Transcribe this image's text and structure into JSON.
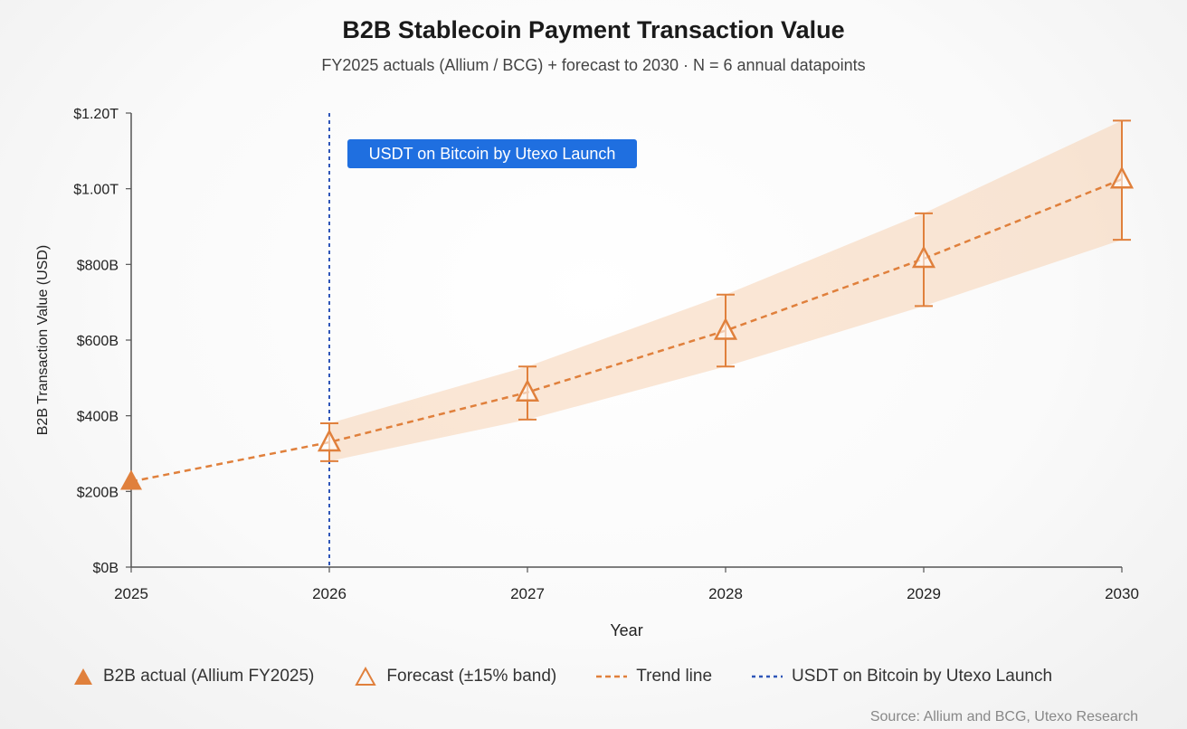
{
  "header": {
    "title": "B2B Stablecoin Payment Transaction Value",
    "subtitle": "FY2025 actuals (Allium / BCG) + forecast to 2030 · N = 6 annual datapoints"
  },
  "chart_data": {
    "type": "line",
    "xlabel": "Year",
    "ylabel": "B2B Transaction Value (USD)",
    "x": [
      "2025",
      "2026",
      "2027",
      "2028",
      "2029",
      "2030"
    ],
    "ylim": [
      0,
      1200
    ],
    "y_ticks": [
      0,
      200,
      400,
      600,
      800,
      1000,
      1200
    ],
    "y_tick_labels": [
      "$0B",
      "$200B",
      "$400B",
      "$600B",
      "$800B",
      "$1.00T",
      "$1.20T"
    ],
    "series": [
      {
        "name": "B2B actual (Allium FY2025)",
        "x": [
          "2025"
        ],
        "values": [
          226
        ]
      },
      {
        "name": "Forecast (±15% band)",
        "x": [
          "2026",
          "2027",
          "2028",
          "2029",
          "2030"
        ],
        "values": [
          330,
          462,
          625,
          815,
          1025
        ],
        "error_low": [
          280,
          390,
          530,
          690,
          865
        ],
        "error_high": [
          380,
          530,
          720,
          935,
          1180
        ]
      },
      {
        "name": "Trend line",
        "x": [
          "2025",
          "2026",
          "2027",
          "2028",
          "2029",
          "2030"
        ],
        "values": [
          226,
          330,
          462,
          625,
          815,
          1025
        ]
      }
    ],
    "annotation": {
      "x": "2026",
      "label": "USDT on Bitcoin by Utexo Launch"
    },
    "grid": false,
    "legend_placement": "bottom"
  },
  "colors": {
    "orange": "#e0803c",
    "band": "#f6c9a3",
    "blue": "#2f56b8",
    "annotation_bg": "#1f6fe0"
  },
  "legend": [
    {
      "label": "B2B actual (Allium FY2025)"
    },
    {
      "label": "Forecast (±15% band)"
    },
    {
      "label": "Trend line"
    },
    {
      "label": "USDT on Bitcoin by Utexo Launch"
    }
  ],
  "footer": {
    "source": "Source: Allium and BCG, Utexo Research"
  }
}
